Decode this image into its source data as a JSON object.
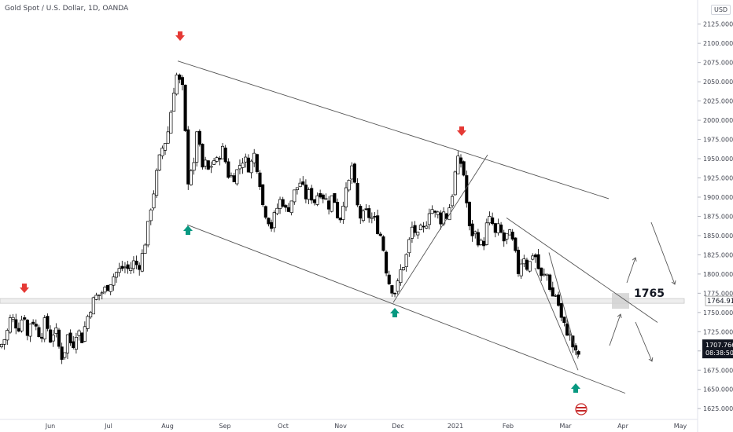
{
  "header": {
    "title": "Gold Spot / U.S. Dollar, 1D, OANDA",
    "currency": "USD"
  },
  "colors": {
    "up_candle": "#ffffff",
    "down_candle": "#000000",
    "arrow_red": "#e53935",
    "arrow_green": "#089981",
    "trendline": "#555555",
    "level_zone": "#b0b0b0",
    "price_tag_bg": "#131722"
  },
  "annotations": {
    "level_label": "1765",
    "level_price": 1765,
    "level_tag": "1764.910",
    "last_price_tag": "1707.766",
    "countdown": "08:38:50"
  },
  "chart_data": {
    "type": "candlestick",
    "title": "Gold Spot / U.S. Dollar, 1D, OANDA",
    "ylim": [
      1615,
      2140
    ],
    "y_ticks": [
      1625,
      1650,
      1675,
      1700,
      1725,
      1750,
      1775,
      1800,
      1825,
      1850,
      1875,
      1900,
      1925,
      1950,
      1975,
      2000,
      2025,
      2050,
      2075,
      2100,
      2125
    ],
    "y_tick_labels": [
      "1625.000",
      "1650.000",
      "1675.000",
      "1700.000",
      "1725.000",
      "1750.000",
      "1775.000",
      "1800.000",
      "1825.000",
      "1850.000",
      "1875.000",
      "1900.000",
      "1925.000",
      "1950.000",
      "1975.000",
      "2000.000",
      "2025.000",
      "2050.000",
      "2075.000",
      "2100.000",
      "2125.000"
    ],
    "x_ticks": [
      "Jun",
      "Jul",
      "Aug",
      "Sep",
      "Oct",
      "Nov",
      "Dec",
      "2021",
      "Feb",
      "Mar",
      "Apr",
      "May"
    ],
    "price_path": [
      [
        0,
        1705
      ],
      [
        8,
        1720
      ],
      [
        14,
        1745
      ],
      [
        20,
        1735
      ],
      [
        26,
        1730
      ],
      [
        30,
        1760
      ],
      [
        34,
        1715
      ],
      [
        40,
        1745
      ],
      [
        46,
        1730
      ],
      [
        52,
        1720
      ],
      [
        58,
        1740
      ],
      [
        64,
        1715
      ],
      [
        70,
        1730
      ],
      [
        76,
        1700
      ],
      [
        80,
        1690
      ],
      [
        86,
        1720
      ],
      [
        92,
        1705
      ],
      [
        98,
        1730
      ],
      [
        104,
        1715
      ],
      [
        110,
        1740
      ],
      [
        116,
        1760
      ],
      [
        122,
        1770
      ],
      [
        128,
        1775
      ],
      [
        134,
        1780
      ],
      [
        140,
        1790
      ],
      [
        146,
        1800
      ],
      [
        152,
        1805
      ],
      [
        158,
        1810
      ],
      [
        164,
        1805
      ],
      [
        170,
        1815
      ],
      [
        176,
        1810
      ],
      [
        180,
        1820
      ],
      [
        184,
        1840
      ],
      [
        188,
        1860
      ],
      [
        192,
        1890
      ],
      [
        196,
        1910
      ],
      [
        200,
        1935
      ],
      [
        204,
        1955
      ],
      [
        208,
        1970
      ],
      [
        212,
        1975
      ],
      [
        216,
        2000
      ],
      [
        220,
        2035
      ],
      [
        224,
        2060
      ],
      [
        228,
        2050
      ],
      [
        232,
        2040
      ],
      [
        236,
        1975
      ],
      [
        238,
        1915
      ],
      [
        242,
        1940
      ],
      [
        246,
        1930
      ],
      [
        250,
        1990
      ],
      [
        254,
        1960
      ],
      [
        258,
        1935
      ],
      [
        262,
        1945
      ],
      [
        266,
        1930
      ],
      [
        270,
        1950
      ],
      [
        276,
        1945
      ],
      [
        282,
        1965
      ],
      [
        286,
        1950
      ],
      [
        290,
        1930
      ],
      [
        296,
        1925
      ],
      [
        302,
        1935
      ],
      [
        308,
        1950
      ],
      [
        314,
        1945
      ],
      [
        318,
        1935
      ],
      [
        322,
        1960
      ],
      [
        326,
        1945
      ],
      [
        330,
        1925
      ],
      [
        334,
        1890
      ],
      [
        338,
        1880
      ],
      [
        342,
        1870
      ],
      [
        346,
        1860
      ],
      [
        350,
        1880
      ],
      [
        354,
        1890
      ],
      [
        358,
        1900
      ],
      [
        364,
        1880
      ],
      [
        370,
        1895
      ],
      [
        376,
        1910
      ],
      [
        382,
        1920
      ],
      [
        388,
        1900
      ],
      [
        394,
        1905
      ],
      [
        400,
        1895
      ],
      [
        406,
        1910
      ],
      [
        412,
        1900
      ],
      [
        418,
        1890
      ],
      [
        424,
        1905
      ],
      [
        428,
        1880
      ],
      [
        432,
        1870
      ],
      [
        436,
        1895
      ],
      [
        440,
        1905
      ],
      [
        444,
        1920
      ],
      [
        448,
        1945
      ],
      [
        452,
        1900
      ],
      [
        456,
        1880
      ],
      [
        460,
        1870
      ],
      [
        464,
        1880
      ],
      [
        470,
        1875
      ],
      [
        476,
        1870
      ],
      [
        480,
        1860
      ],
      [
        484,
        1850
      ],
      [
        488,
        1830
      ],
      [
        492,
        1800
      ],
      [
        496,
        1785
      ],
      [
        500,
        1780
      ],
      [
        504,
        1775
      ],
      [
        508,
        1800
      ],
      [
        512,
        1810
      ],
      [
        516,
        1820
      ],
      [
        520,
        1840
      ],
      [
        524,
        1860
      ],
      [
        528,
        1855
      ],
      [
        532,
        1845
      ],
      [
        536,
        1860
      ],
      [
        540,
        1855
      ],
      [
        544,
        1880
      ],
      [
        548,
        1890
      ],
      [
        552,
        1875
      ],
      [
        556,
        1880
      ],
      [
        560,
        1870
      ],
      [
        564,
        1880
      ],
      [
        568,
        1875
      ],
      [
        572,
        1890
      ],
      [
        576,
        1910
      ],
      [
        580,
        1940
      ],
      [
        584,
        1950
      ],
      [
        588,
        1940
      ],
      [
        592,
        1915
      ],
      [
        594,
        1880
      ],
      [
        598,
        1850
      ],
      [
        602,
        1855
      ],
      [
        606,
        1850
      ],
      [
        610,
        1840
      ],
      [
        614,
        1835
      ],
      [
        618,
        1860
      ],
      [
        622,
        1870
      ],
      [
        626,
        1865
      ],
      [
        630,
        1850
      ],
      [
        634,
        1860
      ],
      [
        638,
        1850
      ],
      [
        642,
        1840
      ],
      [
        646,
        1855
      ],
      [
        650,
        1845
      ],
      [
        654,
        1835
      ],
      [
        658,
        1800
      ],
      [
        662,
        1815
      ],
      [
        666,
        1825
      ],
      [
        670,
        1810
      ],
      [
        674,
        1815
      ],
      [
        678,
        1830
      ],
      [
        682,
        1820
      ],
      [
        686,
        1800
      ],
      [
        690,
        1790
      ],
      [
        694,
        1805
      ],
      [
        698,
        1790
      ],
      [
        702,
        1770
      ],
      [
        706,
        1775
      ],
      [
        710,
        1760
      ],
      [
        714,
        1740
      ],
      [
        718,
        1730
      ],
      [
        722,
        1725
      ],
      [
        726,
        1715
      ],
      [
        730,
        1700
      ],
      [
        734,
        1690
      ],
      [
        738,
        1705
      ]
    ],
    "price_label_x": [
      28,
      64,
      138,
      213,
      286,
      360,
      433,
      506,
      579,
      646,
      719,
      792,
      865
    ],
    "swing_highs": [
      {
        "date": "late May",
        "price": 1765
      },
      {
        "date": "early Aug",
        "price": 2075
      },
      {
        "date": "early Jan",
        "price": 1959
      }
    ],
    "swing_lows": [
      {
        "date": "mid Aug",
        "price": 1863
      },
      {
        "date": "end Nov",
        "price": 1765
      },
      {
        "date": "early Mar",
        "price": 1677
      }
    ],
    "last_price": 1707.766,
    "key_level": 1765
  }
}
